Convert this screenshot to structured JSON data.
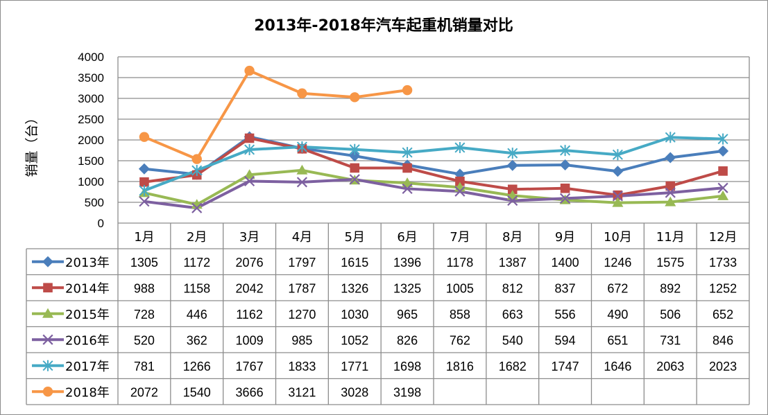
{
  "chart_data": {
    "type": "line",
    "title": "2013年-2018年汽车起重机销量对比",
    "ylabel": "销量（台）",
    "xlabel": "",
    "ylim": [
      0,
      4000
    ],
    "ytick_step": 500,
    "grid": true,
    "legend": "data-table-left",
    "categories": [
      "1月",
      "2月",
      "3月",
      "4月",
      "5月",
      "6月",
      "7月",
      "8月",
      "9月",
      "10月",
      "11月",
      "12月"
    ],
    "series": [
      {
        "name": "2013年",
        "color": "#4A7EBB",
        "marker": "diamond",
        "values": [
          1305,
          1172,
          2076,
          1797,
          1615,
          1396,
          1178,
          1387,
          1400,
          1246,
          1575,
          1733
        ]
      },
      {
        "name": "2014年",
        "color": "#BE4B48",
        "marker": "square",
        "values": [
          988,
          1158,
          2042,
          1787,
          1326,
          1325,
          1005,
          812,
          837,
          672,
          892,
          1252
        ]
      },
      {
        "name": "2015年",
        "color": "#98B954",
        "marker": "triangle",
        "values": [
          728,
          446,
          1162,
          1270,
          1030,
          965,
          858,
          663,
          556,
          490,
          506,
          652
        ]
      },
      {
        "name": "2016年",
        "color": "#7D60A0",
        "marker": "x",
        "values": [
          520,
          362,
          1009,
          985,
          1052,
          826,
          762,
          540,
          594,
          651,
          731,
          846
        ]
      },
      {
        "name": "2017年",
        "color": "#46AAC5",
        "marker": "star",
        "values": [
          781,
          1266,
          1767,
          1833,
          1771,
          1698,
          1816,
          1682,
          1747,
          1646,
          2063,
          2023
        ]
      },
      {
        "name": "2018年",
        "color": "#F79646",
        "marker": "circle",
        "values": [
          2072,
          1540,
          3666,
          3121,
          3028,
          3198,
          null,
          null,
          null,
          null,
          null,
          null
        ]
      }
    ]
  }
}
